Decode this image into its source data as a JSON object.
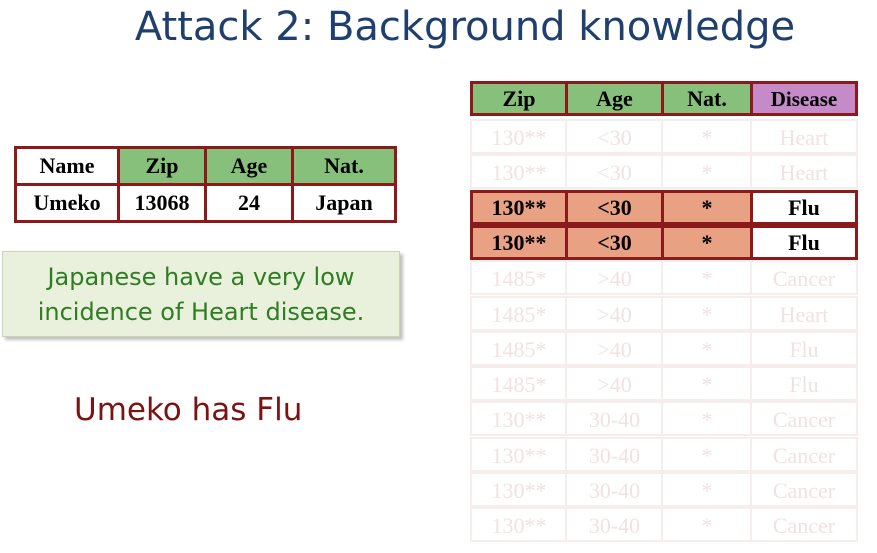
{
  "title": "Attack 2: Background knowledge",
  "person_table": {
    "headers": [
      "Name",
      "Zip",
      "Age",
      "Nat."
    ],
    "row": [
      "Umeko",
      "13068",
      "24",
      "Japan"
    ]
  },
  "background_fact": {
    "line1": "Japanese have a very low",
    "line2": "incidence of Heart disease."
  },
  "conclusion": "Umeko has Flu",
  "anonymized_table": {
    "headers": [
      "Zip",
      "Age",
      "Nat.",
      "Disease"
    ],
    "rows": [
      {
        "zip": "130**",
        "age": "<30",
        "nat": "*",
        "disease": "Heart",
        "highlight": false
      },
      {
        "zip": "130**",
        "age": "<30",
        "nat": "*",
        "disease": "Heart",
        "highlight": false
      },
      {
        "zip": "130**",
        "age": "<30",
        "nat": "*",
        "disease": "Flu",
        "highlight": true
      },
      {
        "zip": "130**",
        "age": "<30",
        "nat": "*",
        "disease": "Flu",
        "highlight": true
      },
      {
        "zip": "1485*",
        "age": ">40",
        "nat": "*",
        "disease": "Cancer",
        "highlight": false
      },
      {
        "zip": "1485*",
        "age": ">40",
        "nat": "*",
        "disease": "Heart",
        "highlight": false
      },
      {
        "zip": "1485*",
        "age": ">40",
        "nat": "*",
        "disease": "Flu",
        "highlight": false
      },
      {
        "zip": "1485*",
        "age": ">40",
        "nat": "*",
        "disease": "Flu",
        "highlight": false
      },
      {
        "zip": "130**",
        "age": "30-40",
        "nat": "*",
        "disease": "Cancer",
        "highlight": false
      },
      {
        "zip": "130**",
        "age": "30-40",
        "nat": "*",
        "disease": "Cancer",
        "highlight": false
      },
      {
        "zip": "130**",
        "age": "30-40",
        "nat": "*",
        "disease": "Cancer",
        "highlight": false
      },
      {
        "zip": "130**",
        "age": "30-40",
        "nat": "*",
        "disease": "Cancer",
        "highlight": false
      }
    ]
  }
}
